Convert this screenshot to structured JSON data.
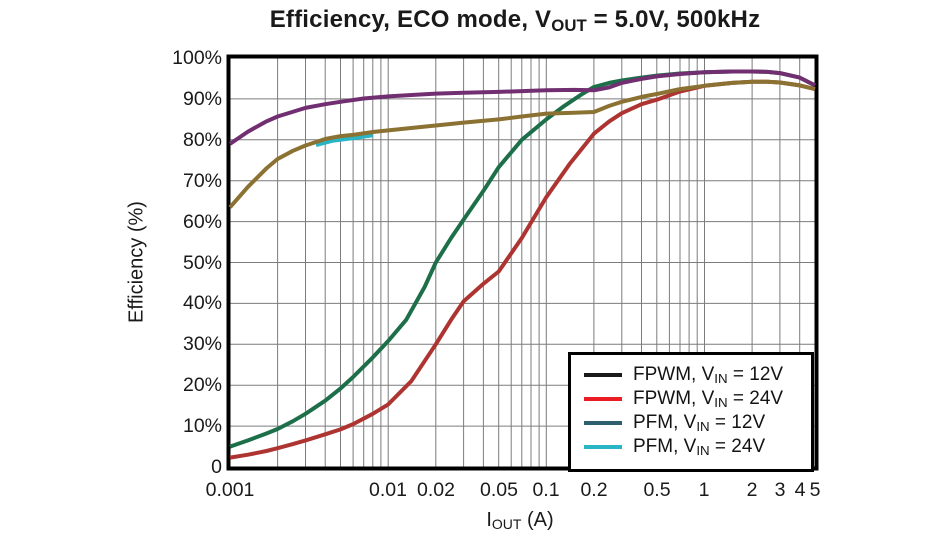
{
  "ui": {
    "title": {
      "pre": "Efficiency, ECO mode, V",
      "sub": "OUT",
      "post": " = 5.0V, 500kHz"
    },
    "xlabel": {
      "pre": "I",
      "sub": "OUT",
      "post": " (A)"
    },
    "ylabel": "Efficiency (%)"
  },
  "chart_data": {
    "type": "line",
    "title": "Efficiency, ECO mode, VOUT = 5.0V, 500kHz",
    "xlabel": "IOUT (A)",
    "ylabel": "Efficiency (%)",
    "x_scale": "log",
    "xlim": [
      0.001,
      5
    ],
    "ylim": [
      0,
      100
    ],
    "grid": true,
    "grid_color": "#7c7c7c",
    "frame_color": "#000000",
    "legend_position": "lower right",
    "x_ticks": [
      {
        "v": 0.001,
        "label": "0.001"
      },
      {
        "v": 0.01,
        "label": "0.01"
      },
      {
        "v": 0.02,
        "label": "0.02"
      },
      {
        "v": 0.05,
        "label": "0.05"
      },
      {
        "v": 0.1,
        "label": "0.1"
      },
      {
        "v": 0.2,
        "label": "0.2"
      },
      {
        "v": 0.5,
        "label": "0.5"
      },
      {
        "v": 1,
        "label": "1"
      },
      {
        "v": 2,
        "label": "2"
      },
      {
        "v": 3,
        "label": "3"
      },
      {
        "v": 4,
        "label": "4"
      },
      {
        "v": 5,
        "label": "5"
      }
    ],
    "y_ticks": [
      {
        "v": 100,
        "label": "100%"
      },
      {
        "v": 90,
        "label": "90%"
      },
      {
        "v": 80,
        "label": "80%"
      },
      {
        "v": 70,
        "label": "70%"
      },
      {
        "v": 60,
        "label": "60%"
      },
      {
        "v": 50,
        "label": "50%"
      },
      {
        "v": 40,
        "label": "40%"
      },
      {
        "v": 30,
        "label": "30%"
      },
      {
        "v": 20,
        "label": "20%"
      },
      {
        "v": 10,
        "label": "10%"
      },
      {
        "v": 0,
        "label": "0"
      }
    ],
    "series": [
      {
        "name": "FPWM, VIN = 12V",
        "name_parts": {
          "pre": "FPWM, V",
          "sub": "IN",
          "post": " = 12V"
        },
        "legend_color": "#1a1a1a",
        "line_color": "#1d6f4a",
        "points": [
          [
            0.001,
            5
          ],
          [
            0.0013,
            6.5
          ],
          [
            0.0017,
            8.2
          ],
          [
            0.002,
            9.3
          ],
          [
            0.0025,
            11.2
          ],
          [
            0.003,
            13
          ],
          [
            0.004,
            16.2
          ],
          [
            0.005,
            19.2
          ],
          [
            0.006,
            22
          ],
          [
            0.008,
            26.8
          ],
          [
            0.01,
            30.8
          ],
          [
            0.013,
            36
          ],
          [
            0.017,
            44
          ],
          [
            0.02,
            50
          ],
          [
            0.025,
            56
          ],
          [
            0.03,
            60.5
          ],
          [
            0.04,
            67.5
          ],
          [
            0.05,
            73.3
          ],
          [
            0.07,
            80
          ],
          [
            0.1,
            85
          ],
          [
            0.13,
            88.3
          ],
          [
            0.17,
            91.3
          ],
          [
            0.2,
            92.9
          ],
          [
            0.25,
            93.9
          ],
          [
            0.3,
            94.5
          ],
          [
            0.4,
            95.2
          ],
          [
            0.5,
            95.7
          ],
          [
            0.7,
            96.2
          ],
          [
            1,
            96.5
          ],
          [
            1.5,
            96.7
          ],
          [
            2,
            96.7
          ],
          [
            2.5,
            96.6
          ],
          [
            3,
            96.3
          ],
          [
            4,
            95.2
          ],
          [
            5,
            93.3
          ]
        ]
      },
      {
        "name": "FPWM, VIN = 24V",
        "name_parts": {
          "pre": "FPWM, V",
          "sub": "IN",
          "post": " = 24V"
        },
        "legend_color": "#ec1c24",
        "line_color": "#ae3432",
        "points": [
          [
            0.001,
            2.3
          ],
          [
            0.0013,
            3
          ],
          [
            0.0017,
            3.9
          ],
          [
            0.002,
            4.6
          ],
          [
            0.0025,
            5.6
          ],
          [
            0.003,
            6.5
          ],
          [
            0.004,
            8
          ],
          [
            0.005,
            9.2
          ],
          [
            0.006,
            10.5
          ],
          [
            0.008,
            13
          ],
          [
            0.01,
            15.3
          ],
          [
            0.014,
            21
          ],
          [
            0.02,
            30
          ],
          [
            0.025,
            36
          ],
          [
            0.03,
            40.5
          ],
          [
            0.04,
            44.8
          ],
          [
            0.05,
            47.8
          ],
          [
            0.07,
            56
          ],
          [
            0.1,
            66
          ],
          [
            0.14,
            74
          ],
          [
            0.2,
            81.5
          ],
          [
            0.25,
            84.5
          ],
          [
            0.3,
            86.5
          ],
          [
            0.4,
            88.7
          ],
          [
            0.5,
            89.8
          ],
          [
            0.7,
            91.8
          ],
          [
            1,
            93.2
          ],
          [
            1.5,
            93.9
          ],
          [
            2,
            94.2
          ],
          [
            2.5,
            94.2
          ],
          [
            3,
            94
          ],
          [
            4,
            93.3
          ],
          [
            5,
            92.4
          ]
        ]
      },
      {
        "name": "PFM, VIN = 12V",
        "name_parts": {
          "pre": "PFM, V",
          "sub": "IN",
          "post": " = 12V"
        },
        "legend_color": "#2d5f70",
        "line_color": "#712f71",
        "points": [
          [
            0.001,
            79
          ],
          [
            0.0013,
            82
          ],
          [
            0.0017,
            84.5
          ],
          [
            0.002,
            85.7
          ],
          [
            0.003,
            87.8
          ],
          [
            0.004,
            88.7
          ],
          [
            0.005,
            89.3
          ],
          [
            0.007,
            90.1
          ],
          [
            0.01,
            90.6
          ],
          [
            0.015,
            91
          ],
          [
            0.02,
            91.3
          ],
          [
            0.03,
            91.5
          ],
          [
            0.05,
            91.7
          ],
          [
            0.07,
            91.9
          ],
          [
            0.1,
            92.1
          ],
          [
            0.15,
            92.2
          ],
          [
            0.2,
            92.1
          ],
          [
            0.25,
            92.8
          ],
          [
            0.3,
            93.9
          ],
          [
            0.4,
            94.9
          ],
          [
            0.5,
            95.5
          ],
          [
            0.7,
            96.1
          ],
          [
            1,
            96.5
          ],
          [
            1.5,
            96.7
          ],
          [
            2,
            96.7
          ],
          [
            2.5,
            96.6
          ],
          [
            3,
            96.3
          ],
          [
            4,
            95.2
          ],
          [
            5,
            93.3
          ]
        ]
      },
      {
        "name": "PFM, VIN = 24V",
        "name_parts": {
          "pre": "PFM, V",
          "sub": "IN",
          "post": " = 24V"
        },
        "legend_color": "#2ab5c6",
        "line_color": "#8b7232",
        "fragment_color": "#2ab5c6",
        "fragment_points": [
          [
            0.0035,
            78.7
          ],
          [
            0.0045,
            79.8
          ],
          [
            0.006,
            80.4
          ],
          [
            0.008,
            81.1
          ]
        ],
        "points": [
          [
            0.001,
            63.5
          ],
          [
            0.0013,
            68.5
          ],
          [
            0.0017,
            73
          ],
          [
            0.002,
            75.3
          ],
          [
            0.0025,
            77.3
          ],
          [
            0.003,
            78.6
          ],
          [
            0.004,
            80.2
          ],
          [
            0.005,
            80.9
          ],
          [
            0.006,
            81.2
          ],
          [
            0.008,
            81.9
          ],
          [
            0.01,
            82.3
          ],
          [
            0.015,
            83
          ],
          [
            0.02,
            83.5
          ],
          [
            0.03,
            84.2
          ],
          [
            0.05,
            85
          ],
          [
            0.07,
            85.7
          ],
          [
            0.1,
            86.4
          ],
          [
            0.15,
            86.6
          ],
          [
            0.2,
            86.8
          ],
          [
            0.25,
            88.3
          ],
          [
            0.3,
            89.3
          ],
          [
            0.4,
            90.5
          ],
          [
            0.5,
            91.2
          ],
          [
            0.7,
            92.4
          ],
          [
            1,
            93.2
          ],
          [
            1.5,
            93.9
          ],
          [
            2,
            94.2
          ],
          [
            2.5,
            94.2
          ],
          [
            3,
            94
          ],
          [
            4,
            93.3
          ],
          [
            5,
            92.4
          ]
        ]
      }
    ]
  }
}
